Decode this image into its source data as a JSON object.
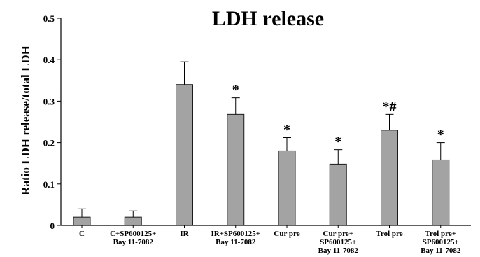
{
  "chart_data": {
    "type": "bar",
    "title": "LDH release",
    "xlabel": "",
    "ylabel": "Ratio LDH release/total LDH",
    "ylim": [
      0,
      0.5
    ],
    "yticks": [
      "0",
      "0.1",
      "0.2",
      "0.3",
      "0.4",
      "0.5"
    ],
    "grid": false,
    "legend": "none",
    "bar_color": "#a3a3a3",
    "categories": [
      [
        "C"
      ],
      [
        "C+SP600125+",
        "Bay 11-7082"
      ],
      [
        "IR"
      ],
      [
        "IR+SP600125+",
        "Bay 11-7082"
      ],
      [
        "Cur pre"
      ],
      [
        "Cur pre+",
        "SP600125+",
        "Bay 11-7082"
      ],
      [
        "Trol pre"
      ],
      [
        "Trol pre+",
        "SP600125+",
        "Bay 11-7082"
      ]
    ],
    "values": [
      0.02,
      0.02,
      0.34,
      0.268,
      0.18,
      0.148,
      0.23,
      0.158
    ],
    "errors": [
      0.02,
      0.015,
      0.055,
      0.04,
      0.032,
      0.035,
      0.038,
      0.042
    ],
    "annotations": [
      "",
      "",
      "",
      "*",
      "*",
      "*",
      "*#",
      "*"
    ]
  }
}
